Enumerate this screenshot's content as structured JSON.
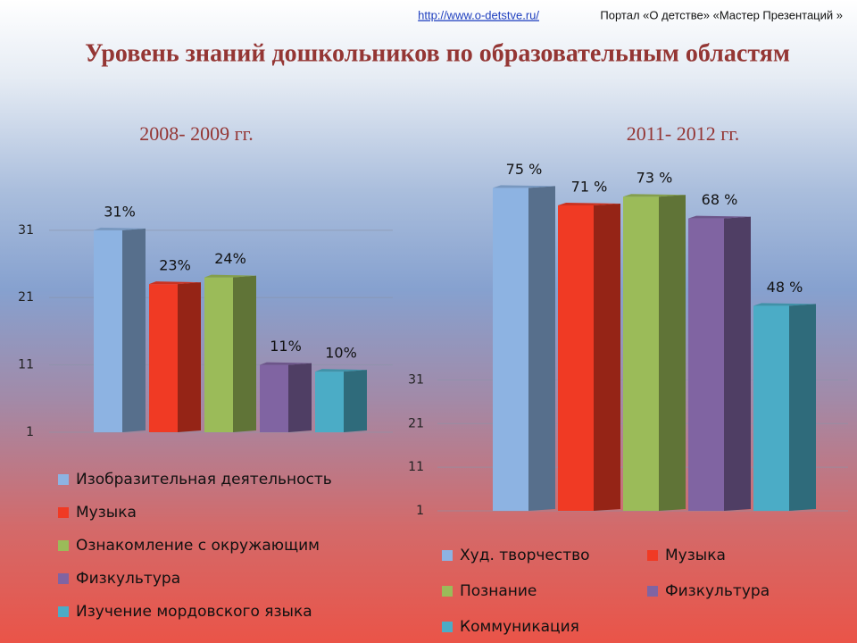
{
  "header": {
    "link": "http://www.o-detstve.ru/",
    "portal": "Портал «О детстве» «Мастер Презентаций »"
  },
  "title": "Уровень знаний дошкольников по образовательным областям",
  "chart_data": [
    {
      "type": "bar",
      "subtitle": "2008- 2009 гг.",
      "ylim": [
        1,
        40
      ],
      "yticks": [
        1,
        11,
        21,
        31
      ],
      "grid": true,
      "series": [
        {
          "name": "Изобразительная деятельность",
          "color": "#8db3e2",
          "values": [
            31
          ],
          "value_labels": [
            "31%"
          ]
        },
        {
          "name": "Музыка",
          "color": "#f03a24",
          "values": [
            23
          ],
          "value_labels": [
            "23%"
          ]
        },
        {
          "name": "Ознакомление с окружающим",
          "color": "#9bbb59",
          "values": [
            24
          ],
          "value_labels": [
            "24%"
          ]
        },
        {
          "name": "Физкультура",
          "color": "#8064a2",
          "values": [
            11
          ],
          "value_labels": [
            "11%"
          ]
        },
        {
          "name": "Изучение мордовского языка",
          "color": "#4bacc6",
          "values": [
            10
          ],
          "value_labels": [
            "10%"
          ]
        }
      ]
    },
    {
      "type": "bar",
      "subtitle": "2011- 2012 гг.",
      "ylim": [
        1,
        80
      ],
      "yticks": [
        1,
        11,
        21,
        31
      ],
      "grid": true,
      "series": [
        {
          "name": "Худ. творчество",
          "color": "#8db3e2",
          "values": [
            75
          ],
          "value_labels": [
            "75  %"
          ]
        },
        {
          "name": "Музыка",
          "color": "#f03a24",
          "values": [
            71
          ],
          "value_labels": [
            "71 %"
          ]
        },
        {
          "name": "Познание",
          "color": "#9bbb59",
          "values": [
            73
          ],
          "value_labels": [
            "73 %"
          ]
        },
        {
          "name": "Физкультура",
          "color": "#8064a2",
          "values": [
            68
          ],
          "value_labels": [
            "68 %"
          ]
        },
        {
          "name": "Коммуникация",
          "color": "#4bacc6",
          "values": [
            48
          ],
          "value_labels": [
            "48 %"
          ]
        }
      ]
    }
  ]
}
